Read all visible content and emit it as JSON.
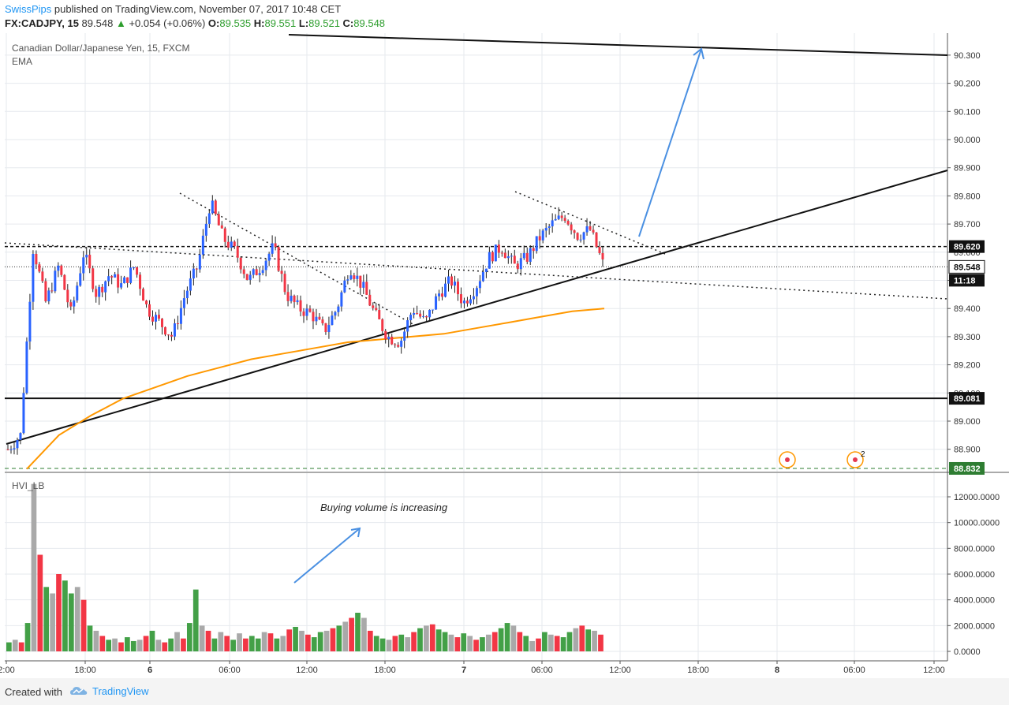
{
  "header": {
    "author": "SwissPips",
    "published": "published on TradingView.com, November 07, 2017 10:48 CET",
    "symbol": "FX:CADJPY, 15",
    "last": "89.548",
    "change": "+0.054 (+0.06%)",
    "o_label": "O:",
    "o_value": "89.535",
    "h_label": "H:",
    "h_value": "89.551",
    "l_label": "L:",
    "l_value": "89.521",
    "c_label": "C:",
    "c_value": "89.548"
  },
  "main_pane": {
    "title": "Canadian Dollar/Japanese Yen, 15, FXCM",
    "indicator": "EMA"
  },
  "volume_pane": {
    "title": "HVI_LB",
    "annotation": "Buying volume is increasing"
  },
  "footer": {
    "created_with": "Created with",
    "brand": "TradingView"
  },
  "colors": {
    "up": "#43a047",
    "down": "#f23645",
    "candle_up": "#2962ff",
    "ema": "#ff9800",
    "arrow": "#4a90e2",
    "neutral": "#a9a9a9"
  },
  "chart_data": [
    {
      "type": "candlestick",
      "title": "Canadian Dollar/Japanese Yen, 15, FXCM",
      "ylim": [
        88.81,
        90.36
      ],
      "yticks": [
        "90.300",
        "90.200",
        "90.100",
        "90.000",
        "89.900",
        "89.800",
        "89.700",
        "89.600",
        "89.500",
        "89.400",
        "89.300",
        "89.200",
        "89.100",
        "89.000",
        "88.900"
      ],
      "xticks": [
        "2:00",
        "18:00",
        "6",
        "06:00",
        "12:00",
        "18:00",
        "7",
        "06:00",
        "12:00",
        "18:00",
        "8",
        "06:00",
        "12:00"
      ],
      "price_labels": [
        {
          "value": "89.620",
          "style": "dark"
        },
        {
          "value": "89.548",
          "style": "white"
        },
        {
          "value": "11:18",
          "style": "dark"
        },
        {
          "value": "89.081",
          "style": "dark"
        },
        {
          "value": "88.832",
          "style": "green"
        }
      ],
      "price_path": [
        88.9,
        88.95,
        89.62,
        89.42,
        89.55,
        89.38,
        89.6,
        89.45,
        89.52,
        89.48,
        89.55,
        89.4,
        89.35,
        89.3,
        89.45,
        89.55,
        89.78,
        89.65,
        89.6,
        89.5,
        89.55,
        89.62,
        89.45,
        89.4,
        89.38,
        89.32,
        89.4,
        89.55,
        89.48,
        89.38,
        89.3,
        89.28,
        89.4,
        89.35,
        89.45,
        89.5,
        89.42,
        89.48,
        89.58,
        89.62,
        89.55,
        89.58,
        89.65,
        89.7,
        89.73,
        89.66,
        89.68,
        89.56
      ],
      "ema": [
        88.83,
        88.95,
        89.02,
        89.08,
        89.12,
        89.16,
        89.19,
        89.22,
        89.24,
        89.26,
        89.28,
        89.29,
        89.3,
        89.31,
        89.33,
        89.35,
        89.37,
        89.39,
        89.4
      ],
      "levels": [
        89.62,
        89.548,
        89.081,
        88.832
      ],
      "markers": [
        {
          "label": "2"
        }
      ]
    },
    {
      "type": "bar",
      "title": "HVI_LB",
      "ylim": [
        0,
        13000
      ],
      "yticks": [
        "12000.0000",
        "10000.0000",
        "8000.0000",
        "6000.0000",
        "4000.0000",
        "2000.0000",
        "0.0000"
      ],
      "values": [
        700,
        900,
        700,
        2200,
        13000,
        7500,
        5000,
        4500,
        6000,
        5500,
        4500,
        5000,
        4000,
        2000,
        1600,
        1200,
        900,
        1000,
        700,
        1100,
        800,
        900,
        1200,
        1600,
        900,
        700,
        1000,
        1500,
        1000,
        2200,
        4800,
        2000,
        1600,
        1000,
        1500,
        1200,
        900,
        1400,
        1000,
        1200,
        1000,
        1500,
        1400,
        1000,
        1200,
        1700,
        1900,
        1600,
        1300,
        1100,
        1500,
        1600,
        1800,
        2000,
        2300,
        2600,
        3000,
        2600,
        1600,
        1200,
        1000,
        900,
        1200,
        1300,
        1100,
        1500,
        1800,
        2000,
        2100,
        1700,
        1500,
        1300,
        1100,
        1400,
        1200,
        900,
        1100,
        1300,
        1500,
        1800,
        2200,
        2000,
        1500,
        1200,
        800,
        1000,
        1500,
        1300,
        1200,
        1100,
        1500,
        1800,
        2000,
        1700,
        1600,
        1300
      ],
      "annotation": "Buying volume is increasing"
    }
  ]
}
